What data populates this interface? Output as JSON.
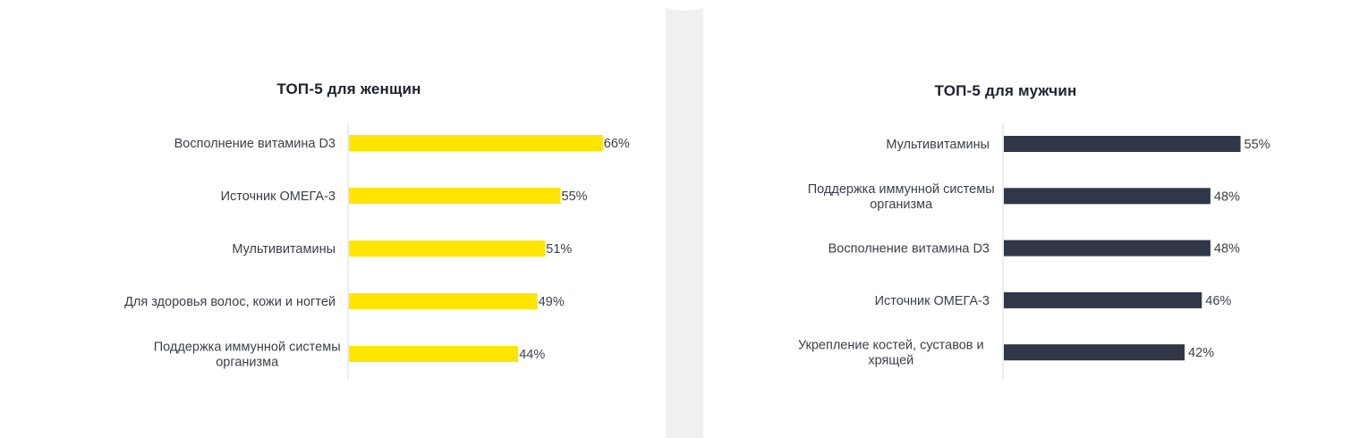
{
  "chart_data": [
    {
      "type": "bar",
      "orientation": "horizontal",
      "title": "ТОП-5 для женщин",
      "categories": [
        [
          "Восполнение витамина D3"
        ],
        [
          "Источник ОМЕГА-3"
        ],
        [
          "Мультивитамины"
        ],
        [
          "Для здоровья волос, кожи и ногтей"
        ],
        [
          "Поддержка иммунной системы",
          "организма"
        ]
      ],
      "values": [
        66,
        55,
        51,
        49,
        44
      ],
      "value_labels": [
        "66%",
        "55%",
        "51%",
        "49%",
        "44%"
      ],
      "unit": "%",
      "color": "#FFE500",
      "xlim": [
        0,
        100
      ]
    },
    {
      "type": "bar",
      "orientation": "horizontal",
      "title": "ТОП-5 для мужчин",
      "categories": [
        [
          "Мультивитамины"
        ],
        [
          "Поддержка иммунной системы",
          "организма"
        ],
        [
          "Восполнение витамина D3"
        ],
        [
          "Источник ОМЕГА-3"
        ],
        [
          "Укрепление костей, суставов и",
          "хрящей"
        ]
      ],
      "values": [
        55,
        48,
        48,
        46,
        42
      ],
      "value_labels": [
        "55%",
        "48%",
        "48%",
        "46%",
        "42%"
      ],
      "unit": "%",
      "color": "#2F3749",
      "xlim": [
        0,
        100
      ]
    }
  ]
}
